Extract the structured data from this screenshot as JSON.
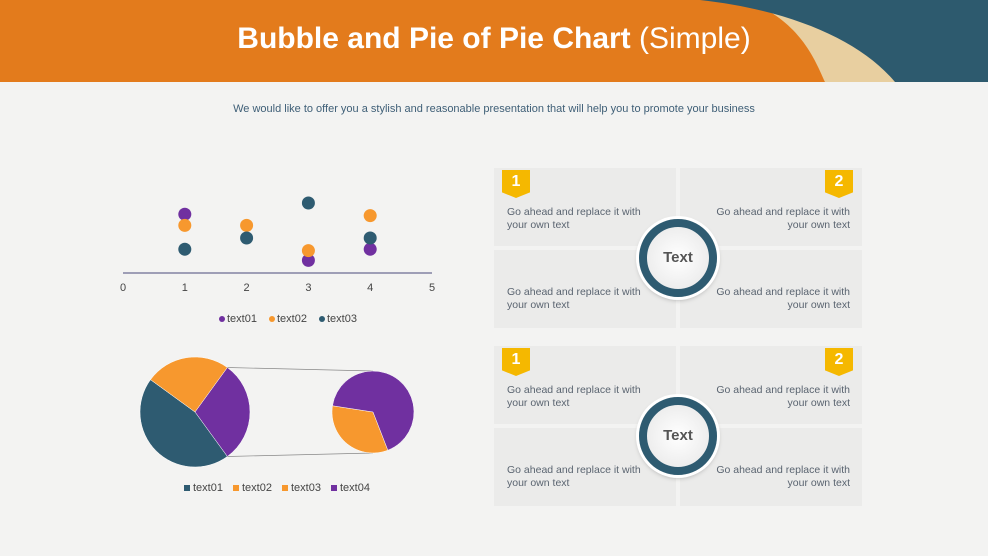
{
  "header": {
    "title": "Bubble and Pie of Pie Chart",
    "title_suffix": "(Simple)",
    "subtitle": "We would like to offer you a stylish and reasonable presentation that will help you to promote your business"
  },
  "chart_data": [
    {
      "type": "scatter",
      "xlim": [
        0,
        5
      ],
      "xticks": [
        0,
        1,
        2,
        3,
        4,
        5
      ],
      "ylim": [
        0,
        6
      ],
      "series": [
        {
          "name": "text01",
          "color": "#7030a0",
          "x": [
            1,
            3,
            4
          ],
          "values": [
            4.2,
            0.9,
            1.7
          ]
        },
        {
          "name": "text02",
          "color": "#f7982e",
          "x": [
            1,
            2,
            3,
            4
          ],
          "values": [
            3.4,
            3.4,
            1.6,
            4.1
          ]
        },
        {
          "name": "text03",
          "color": "#2e5b71",
          "x": [
            1,
            2,
            3,
            4
          ],
          "values": [
            1.7,
            2.5,
            5,
            2.5
          ]
        }
      ]
    },
    {
      "type": "pie_of_pie",
      "categories": [
        "text01",
        "text02",
        "text03",
        "text04"
      ],
      "values": [
        45,
        25,
        10,
        20
      ],
      "colors": [
        "#2e5b71",
        "#f7982e",
        "#f7982e",
        "#7030a0"
      ],
      "second_plot_count": 2
    }
  ],
  "panels": [
    {
      "badges": [
        "1",
        "2"
      ],
      "center": "Text",
      "cells": [
        "Go ahead and replace it with your own text",
        "Go ahead and replace it with your own text",
        "Go ahead and replace it with your own text",
        "Go ahead and replace it with your own text"
      ]
    },
    {
      "badges": [
        "1",
        "2"
      ],
      "center": "Text",
      "cells": [
        "Go ahead and replace it with your own text",
        "Go ahead and replace it with your own text",
        "Go ahead and replace it with your own text",
        "Go ahead and replace it with your own text"
      ]
    }
  ]
}
